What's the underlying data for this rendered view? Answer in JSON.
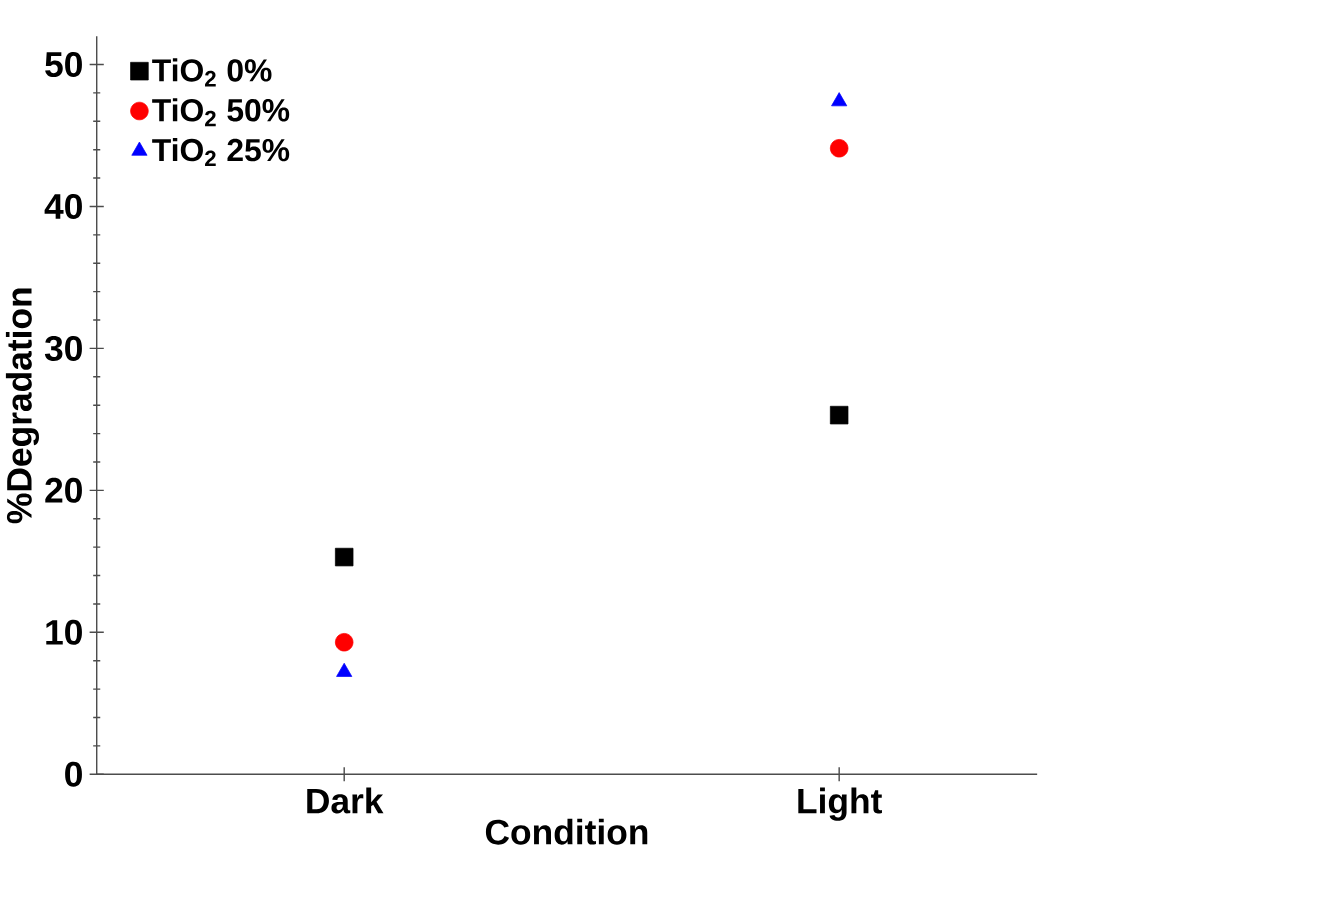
{
  "chart_data": {
    "type": "scatter",
    "xlabel": "Condition",
    "ylabel": "%Degradation",
    "categories": [
      "Dark",
      "Light"
    ],
    "series": [
      {
        "name": "TiO$_{2}$ 0%",
        "color": "#000000",
        "marker": "square",
        "values": [
          15.3,
          25.3
        ]
      },
      {
        "name": "TiO$_{2}$ 50%",
        "color": "#ff0000",
        "marker": "circle",
        "values": [
          9.3,
          44.1
        ]
      },
      {
        "name": "TiO$_{2}$ 25%",
        "color": "#0000ff",
        "marker": "triangle",
        "values": [
          7.2,
          47.4
        ]
      }
    ],
    "ylim": [
      0,
      52
    ],
    "yticks": [
      0,
      10,
      20,
      30,
      40,
      50
    ],
    "grid": false,
    "legend": "top left"
  }
}
